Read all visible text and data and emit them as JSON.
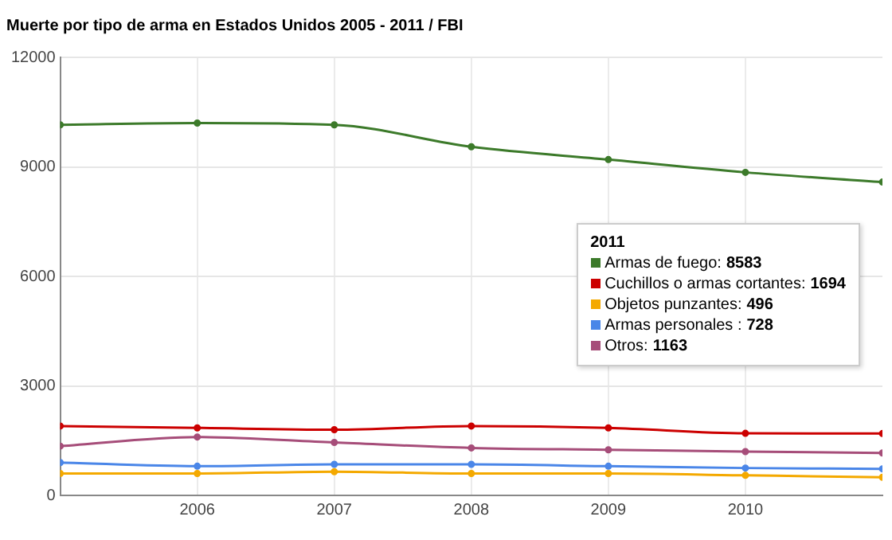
{
  "chart_data": {
    "type": "line",
    "title": "Muerte por tipo de arma en Estados Unidos 2005 - 2011 / FBI",
    "x": [
      2005,
      2006,
      2007,
      2008,
      2009,
      2010,
      2011
    ],
    "xlim": [
      2005,
      2011
    ],
    "xticks": [
      2006,
      2007,
      2008,
      2009,
      2010
    ],
    "ylim": [
      0,
      12000
    ],
    "yticks": [
      0,
      3000,
      6000,
      9000,
      12000
    ],
    "grid": true,
    "legend": "right",
    "legend_title": "2011",
    "marker": "circle",
    "line_style": "solid",
    "annotations": [
      "8583",
      "1694",
      "496",
      "728",
      "1163"
    ],
    "series": [
      {
        "name": "Armas de fuego:",
        "color": "#3c7a2a",
        "values": [
          10150,
          10200,
          10150,
          9550,
          9200,
          8850,
          8583
        ]
      },
      {
        "name": "Cuchillos o armas cortantes:",
        "color": "#cc0000",
        "values": [
          1900,
          1850,
          1800,
          1900,
          1850,
          1700,
          1694
        ]
      },
      {
        "name": "Objetos punzantes:",
        "color": "#f4a900",
        "values": [
          600,
          600,
          650,
          600,
          600,
          550,
          496
        ]
      },
      {
        "name": "Armas personales :",
        "color": "#4a86e8",
        "values": [
          900,
          800,
          850,
          850,
          800,
          750,
          728
        ]
      },
      {
        "name": "Otros:",
        "color": "#a64d79",
        "values": [
          1350,
          1600,
          1450,
          1300,
          1250,
          1200,
          1163
        ]
      }
    ]
  }
}
